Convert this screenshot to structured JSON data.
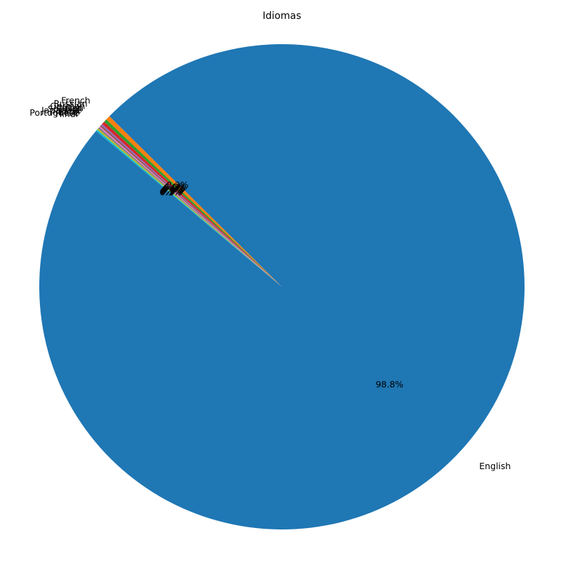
{
  "chart_data": {
    "type": "pie",
    "title": "Idiomas",
    "categories": [
      "English",
      "French",
      "Russian",
      "German",
      "Italian",
      "Spanish",
      "Japanese",
      "Latin",
      "Portuguese",
      "Hindi"
    ],
    "values": [
      98.8,
      0.3,
      0.2,
      0.2,
      0.1,
      0.1,
      0.1,
      0.1,
      0.1,
      0.1
    ],
    "value_labels": [
      "98.8%",
      "0.3%",
      "0.2%",
      "0.2%",
      "0.1%",
      "0.1%",
      "0.1%",
      "0.1%",
      "0.1%",
      "0.1%"
    ],
    "colors": [
      "#1f77b4",
      "#ff7f0e",
      "#2ca02c",
      "#d62728",
      "#9467bd",
      "#8c564b",
      "#e377c2",
      "#7f7f7f",
      "#bcbd22",
      "#17becf"
    ],
    "start_angle_deg": 140,
    "direction": "counterclockwise"
  }
}
